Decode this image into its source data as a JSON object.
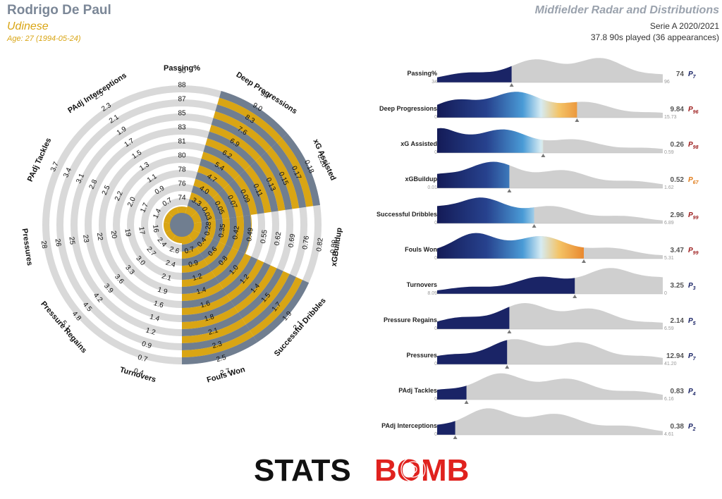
{
  "header": {
    "player_name": "Rodrigo De Paul",
    "team": "Udinese",
    "age": "Age: 27 (1994-05-24)",
    "title": "Midfielder Radar and Distributions",
    "competition": "Serie A 2020/2021",
    "minutes": "37.8 90s played (36 appearances)"
  },
  "colors": {
    "radar_fill_gold": "#d9a514",
    "radar_fill_slate": "#707e90",
    "ring_grey": "#d9d9d9",
    "dist_grey": "#cfcfcf",
    "navy": "#1a2466",
    "percentile_red": "#9c1c1c",
    "percentile_orange": "#e07b19",
    "percentile_navy": "#1a2466"
  },
  "chart_data": [
    {
      "type": "radar",
      "metrics": [
        "Passing%",
        "Deep Progressions",
        "xG Assisted",
        "xGBuildup",
        "Successful Dribbles",
        "Fouls Won",
        "Turnovers",
        "Pressure Regains",
        "Pressures",
        "PAdj Tackles",
        "PAdj Interceptions"
      ],
      "ticks": [
        [
          "74",
          "76",
          "78",
          "80",
          "81",
          "83",
          "85",
          "87",
          "88",
          "90"
        ],
        [
          "3.3",
          "4.0",
          "4.7",
          "5.4",
          "6.2",
          "6.9",
          "7.6",
          "8.3",
          "9.0",
          "9.7"
        ],
        [
          "0.03",
          "0.05",
          "0.07",
          "0.09",
          "0.11",
          "0.13",
          "0.15",
          "0.17",
          "0.18",
          "0.20"
        ],
        [
          "0.28",
          "0.35",
          "0.42",
          "0.49",
          "0.55",
          "0.62",
          "0.69",
          "0.76",
          "0.82",
          "0.89"
        ],
        [
          "0.4",
          "0.6",
          "0.8",
          "1.0",
          "1.2",
          "1.4",
          "1.5",
          "1.7",
          "1.9",
          "2.1"
        ],
        [
          "0.7",
          "0.9",
          "1.2",
          "1.4",
          "1.6",
          "1.8",
          "2.1",
          "2.3",
          "2.5",
          "2.7"
        ],
        [
          "2.6",
          "2.4",
          "2.1",
          "1.9",
          "1.6",
          "1.4",
          "1.2",
          "0.9",
          "0.7",
          "0.4"
        ],
        [
          "2.4",
          "2.7",
          "3.0",
          "3.3",
          "3.6",
          "3.9",
          "4.2",
          "4.5",
          "4.8",
          "5.1"
        ],
        [
          "16",
          "17",
          "19",
          "20",
          "22",
          "23",
          "25",
          "26",
          "28"
        ],
        [
          "1.4",
          "1.7",
          "2.0",
          "2.2",
          "2.5",
          "2.8",
          "3.1",
          "3.4",
          "3.7"
        ],
        [
          "0.7",
          "0.9",
          "1.1",
          "1.3",
          "1.5",
          "1.7",
          "1.9",
          "2.1",
          "2.3",
          "2.5"
        ]
      ],
      "player_values": [
        74,
        9.84,
        0.26,
        0.52,
        2.96,
        3.47,
        3.25,
        2.14,
        12.94,
        0.83,
        0.38
      ]
    },
    {
      "type": "distribution",
      "rows": [
        {
          "name": "Passing%",
          "min": "34",
          "max": "96",
          "value": "74",
          "percentile": "7",
          "style": "navy",
          "peak": 0.62,
          "frac": 0.33
        },
        {
          "name": "Deep Progressions",
          "min": "0",
          "max": "15.73",
          "value": "9.84",
          "percentile": "96",
          "style": "spectrum",
          "peak": 0.25,
          "frac": 0.62
        },
        {
          "name": "xG Assisted",
          "min": "0",
          "max": "0.59",
          "value": "0.26",
          "percentile": "98",
          "style": "spectrum",
          "peak": 0.05,
          "frac": 0.47
        },
        {
          "name": "xGBuildup",
          "min": "0.01",
          "max": "1.62",
          "value": "0.52",
          "percentile": "67",
          "style": "spectrum",
          "peak": 0.18,
          "frac": 0.32
        },
        {
          "name": "Successful Dribbles",
          "min": "0",
          "max": "6.89",
          "value": "2.96",
          "percentile": "99",
          "style": "spectrum",
          "peak": 0.07,
          "frac": 0.43
        },
        {
          "name": "Fouls Won",
          "min": "0",
          "max": "5.31",
          "value": "3.47",
          "percentile": "99",
          "style": "spectrum",
          "peak": 0.22,
          "frac": 0.65
        },
        {
          "name": "Turnovers",
          "min": "8.09",
          "max": "0",
          "value": "3.25",
          "percentile": "3",
          "style": "navy",
          "peak": 0.88,
          "frac": 0.61
        },
        {
          "name": "Pressure Regains",
          "min": "0",
          "max": "6.59",
          "value": "2.14",
          "percentile": "5",
          "style": "navy",
          "peak": 0.45,
          "frac": 0.32
        },
        {
          "name": "Pressures",
          "min": "0",
          "max": "41.20",
          "value": "12.94",
          "percentile": "7",
          "style": "navy",
          "peak": 0.43,
          "frac": 0.31
        },
        {
          "name": "PAdj Tackles",
          "min": "0",
          "max": "6.16",
          "value": "0.83",
          "percentile": "4",
          "style": "navy",
          "peak": 0.32,
          "frac": 0.13
        },
        {
          "name": "PAdj Interceptions",
          "min": "0",
          "max": "4.61",
          "value": "0.38",
          "percentile": "2",
          "style": "navy",
          "peak": 0.25,
          "frac": 0.08
        }
      ]
    }
  ],
  "logo": {
    "text_left": "STATS",
    "text_right": "BOMB"
  }
}
